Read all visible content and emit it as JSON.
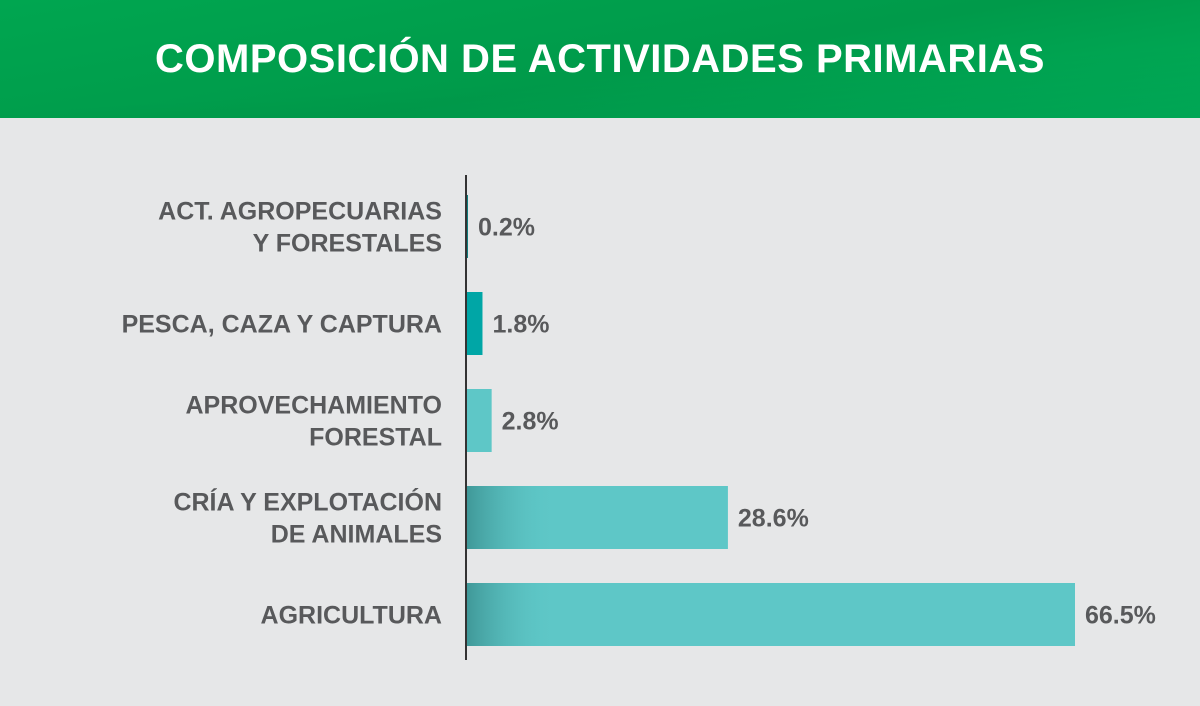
{
  "header": {
    "title": "COMPOSICIÓN DE ACTIVIDADES PRIMARIAS"
  },
  "colors": {
    "header_green": "#00a650",
    "background": "#e6e7e8",
    "text": "#58595b",
    "axis": "#333333"
  },
  "chart_data": {
    "type": "bar",
    "orientation": "horizontal",
    "title": "COMPOSICIÓN DE ACTIVIDADES PRIMARIAS",
    "categories": [
      [
        "ACT. AGROPECUARIAS",
        "Y FORESTALES"
      ],
      [
        "PESCA, CAZA Y CAPTURA"
      ],
      [
        "APROVECHAMIENTO",
        "FORESTAL"
      ],
      [
        "CRÍA Y EXPLOTACIÓN",
        "DE ANIMALES"
      ],
      [
        "AGRICULTURA"
      ]
    ],
    "values": [
      0.2,
      1.8,
      2.8,
      28.6,
      66.5
    ],
    "value_labels": [
      "0.2%",
      "1.8%",
      "2.8%",
      "28.6%",
      "66.5%"
    ],
    "bar_colors": [
      "#0e7d7d",
      "#00a6a6",
      "#5ec7c7",
      "#5ec7c7",
      "#5ec7c7"
    ],
    "xlim": [
      0,
      66.5
    ],
    "grid": false,
    "legend": "none"
  }
}
